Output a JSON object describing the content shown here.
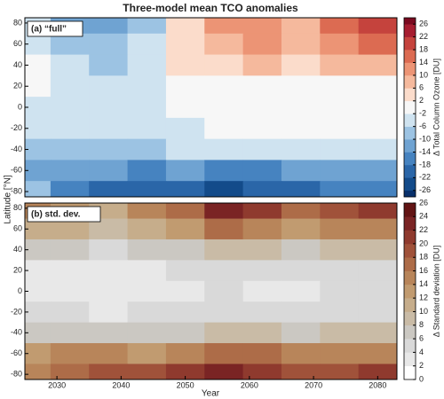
{
  "chart_data": [
    {
      "type": "contour",
      "title": "Three-model mean TCO anomalies",
      "panel_label": "(a) “full”",
      "y_label": "Latitude [°N]",
      "x": [
        2026,
        2032,
        2038,
        2044,
        2050,
        2056,
        2062,
        2068,
        2074,
        2080
      ],
      "y": [
        80,
        60,
        40,
        20,
        0,
        -20,
        -40,
        -60,
        -80
      ],
      "values": [
        [
          -6,
          -12,
          -14,
          -8,
          4,
          10,
          12,
          8,
          16,
          18
        ],
        [
          -4,
          -10,
          -10,
          -6,
          4,
          8,
          10,
          6,
          12,
          14
        ],
        [
          -2,
          -6,
          -8,
          -4,
          2,
          4,
          6,
          4,
          6,
          8
        ],
        [
          -2,
          -4,
          -4,
          -4,
          -2,
          -2,
          -2,
          -2,
          -2,
          -2
        ],
        [
          -4,
          -6,
          -6,
          -4,
          -2,
          -2,
          -2,
          -2,
          -2,
          -2
        ],
        [
          -4,
          -6,
          -6,
          -4,
          -4,
          -2,
          -2,
          -2,
          -2,
          -2
        ],
        [
          -8,
          -8,
          -8,
          -8,
          -6,
          -6,
          -6,
          -6,
          -6,
          -6
        ],
        [
          -12,
          -14,
          -14,
          -16,
          -14,
          -16,
          -16,
          -14,
          -14,
          -12
        ],
        [
          -10,
          -18,
          -20,
          -22,
          -20,
          -24,
          -22,
          -20,
          -18,
          -16
        ]
      ],
      "xlim": [
        2025,
        2083
      ],
      "ylim": [
        -85,
        85
      ],
      "yticks": [
        80,
        60,
        40,
        20,
        0,
        -20,
        -40,
        -60,
        -80
      ],
      "colorbar": {
        "label": "Δ Total Column Ozone [DU]",
        "lim": [
          -28,
          28
        ],
        "ticks": [
          -26,
          -22,
          -18,
          -14,
          -10,
          -6,
          -2,
          2,
          6,
          10,
          14,
          18,
          22,
          26
        ],
        "colors": [
          "#08306b",
          "#134b8a",
          "#2a66a8",
          "#4683c0",
          "#6fa3d2",
          "#9cc3e3",
          "#cfe3f0",
          "#f7f7f7",
          "#fbdccb",
          "#f5b99d",
          "#ec9475",
          "#dc6b52",
          "#c5433d",
          "#a61d30",
          "#7a0a20"
        ]
      }
    },
    {
      "type": "contour",
      "panel_label": "(b) std. dev.",
      "x_label": "Year",
      "x": [
        2026,
        2032,
        2038,
        2044,
        2050,
        2056,
        2062,
        2068,
        2074,
        2080
      ],
      "y": [
        80,
        60,
        40,
        20,
        0,
        -20,
        -40,
        -60,
        -80
      ],
      "values": [
        [
          14,
          12,
          10,
          14,
          16,
          22,
          20,
          16,
          18,
          20
        ],
        [
          10,
          10,
          8,
          10,
          12,
          16,
          14,
          12,
          14,
          14
        ],
        [
          6,
          6,
          4,
          6,
          6,
          8,
          8,
          6,
          8,
          8
        ],
        [
          2,
          2,
          2,
          2,
          4,
          4,
          4,
          4,
          4,
          4
        ],
        [
          2,
          2,
          2,
          2,
          2,
          4,
          2,
          2,
          4,
          4
        ],
        [
          4,
          4,
          2,
          4,
          4,
          4,
          4,
          4,
          4,
          4
        ],
        [
          6,
          6,
          6,
          6,
          6,
          8,
          8,
          6,
          8,
          8
        ],
        [
          12,
          14,
          14,
          12,
          14,
          16,
          16,
          14,
          14,
          14
        ],
        [
          14,
          16,
          18,
          18,
          20,
          22,
          20,
          18,
          18,
          20
        ]
      ],
      "xlim": [
        2025,
        2083
      ],
      "ylim": [
        -85,
        85
      ],
      "xticks": [
        2030,
        2040,
        2050,
        2060,
        2070,
        2080
      ],
      "yticks": [
        80,
        60,
        40,
        20,
        0,
        -20,
        -40,
        -60,
        -80
      ],
      "colorbar": {
        "label": "Δ Standard deviation [DU]",
        "lim": [
          0,
          26
        ],
        "ticks": [
          0,
          2,
          4,
          6,
          8,
          10,
          12,
          14,
          16,
          18,
          20,
          22,
          24,
          26
        ],
        "colors": [
          "#ffffff",
          "#e8e8e8",
          "#d9d9d9",
          "#cbc8c2",
          "#c9bba6",
          "#c6ad8b",
          "#c19b70",
          "#b8855a",
          "#ad6c48",
          "#a0523a",
          "#8f3a2e",
          "#7a2424",
          "#621414"
        ]
      }
    }
  ]
}
